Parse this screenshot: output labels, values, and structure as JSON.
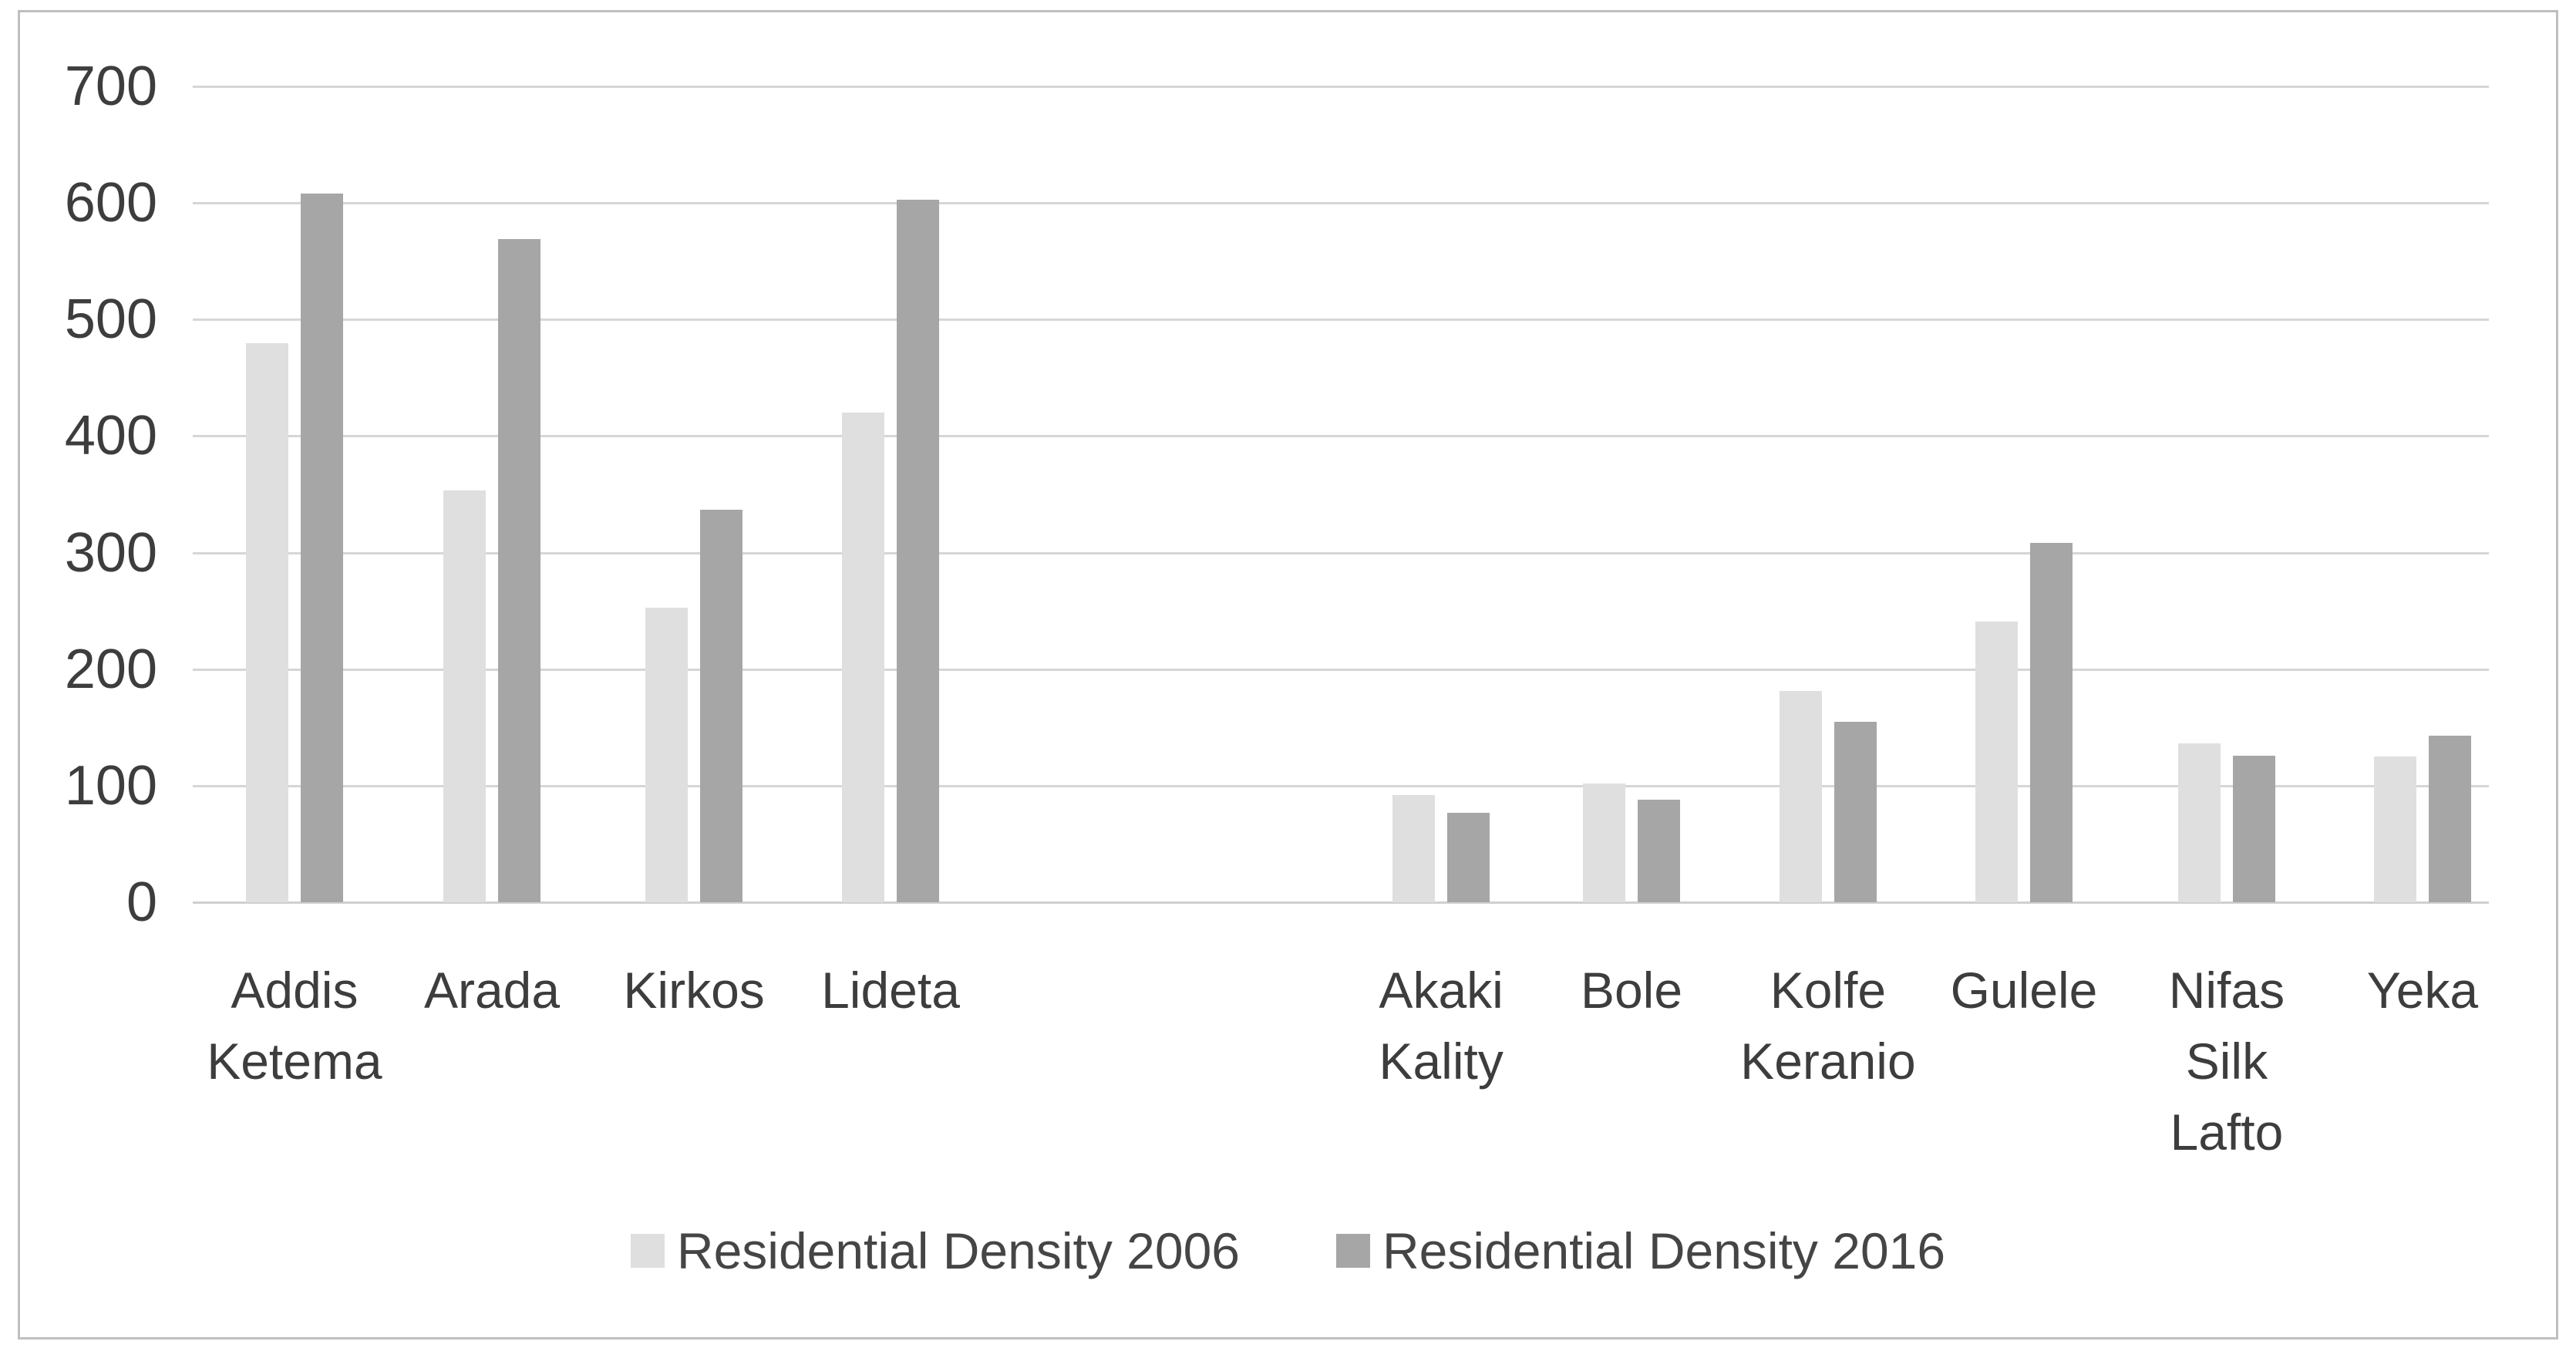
{
  "chart_data": {
    "type": "bar",
    "title": "",
    "xlabel": "",
    "ylabel": "",
    "categories": [
      "Addis Ketema",
      "Arada",
      "Kirkos",
      "Lideta",
      "Akaki Kality",
      "Bole",
      "Kolfe Keranio",
      "Gulele",
      "Nifas Silk Lafto",
      "Yeka"
    ],
    "series": [
      {
        "name": "Residential Density 2006",
        "color": "#dfdfdf",
        "values": [
          480,
          353,
          253,
          420,
          92,
          102,
          181,
          241,
          136,
          125
        ]
      },
      {
        "name": "Residential Density 2016",
        "color": "#a6a6a6",
        "values": [
          608,
          569,
          337,
          603,
          77,
          88,
          155,
          308,
          126,
          143
        ]
      }
    ],
    "ylim": [
      0,
      700
    ],
    "y_ticks": [
      700,
      600,
      500,
      400,
      300,
      200,
      100,
      0
    ],
    "grid": "horizontal",
    "legend_position": "bottom-center",
    "layout_note": "two clusters of categories: first 4, then a gap of about 3 empty slots, then 6"
  },
  "colors": {
    "background": "#ffffff",
    "chart_border": "#bfbfbf",
    "gridline": "#d6d6d6",
    "axis_line": "#d0d0d0",
    "tick_text": "#3d3d3d",
    "category_text": "#3d3d3d",
    "legend_text": "#454545",
    "series_2006": "#dfdfdf",
    "series_2016": "#a6a6a6"
  }
}
